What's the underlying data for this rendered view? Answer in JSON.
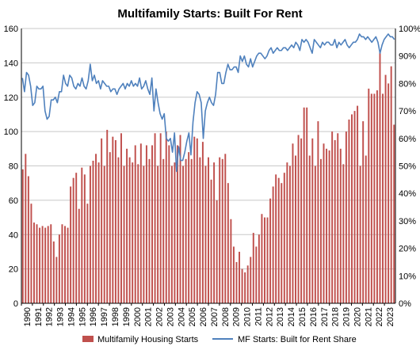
{
  "chart_data": {
    "type": "bar",
    "title": "Multifamily Starts: Built For Rent",
    "xlabel": "",
    "ylabel": "",
    "ylim": [
      0,
      160
    ],
    "y2lim": [
      0,
      100
    ],
    "yticks": [
      "0",
      "20",
      "40",
      "60",
      "80",
      "100",
      "120",
      "140",
      "160"
    ],
    "y2ticks": [
      "0%",
      "10%",
      "20%",
      "30%",
      "40%",
      "50%",
      "60%",
      "70%",
      "80%",
      "90%",
      "100%"
    ],
    "x_ticks": [
      "1990",
      "1991",
      "1992",
      "1993",
      "1994",
      "1995",
      "1996",
      "1997",
      "1998",
      "1999",
      "2000",
      "2001",
      "2002",
      "2003",
      "2004",
      "2005",
      "2006",
      "2007",
      "2008",
      "2009",
      "2010",
      "2011",
      "2012",
      "2013",
      "2014",
      "2015",
      "2016",
      "2017",
      "2018",
      "2019",
      "2020",
      "2021",
      "2022",
      "2023"
    ],
    "grid": true,
    "legend_position": "bottom",
    "colors": {
      "bars": "#c0504d",
      "line": "#4f81bd",
      "grid": "#c8c8c8"
    },
    "series": [
      {
        "name": "Multifamily Housing Starts",
        "type": "bar",
        "axis": "left",
        "values": [
          78,
          87,
          74,
          58,
          47,
          46,
          44,
          45,
          44,
          45,
          46,
          36,
          27,
          40,
          46,
          45,
          44,
          68,
          73,
          76,
          55,
          79,
          75,
          58,
          80,
          83,
          87,
          82,
          96,
          80,
          101,
          88,
          97,
          95,
          85,
          99,
          80,
          90,
          85,
          82,
          92,
          81,
          93,
          80,
          92,
          84,
          92,
          99,
          80,
          99,
          84,
          100,
          92,
          80,
          82,
          92,
          98,
          80,
          84,
          88,
          84,
          97,
          96,
          85,
          94,
          80,
          85,
          72,
          82,
          60,
          85,
          84,
          87,
          70,
          49,
          33,
          24,
          30,
          20,
          18,
          22,
          27,
          41,
          33,
          40,
          52,
          50,
          50,
          61,
          68,
          75,
          73,
          70,
          76,
          82,
          80,
          93,
          86,
          98,
          96,
          114,
          114,
          86,
          96,
          80,
          106,
          84,
          93,
          90,
          89,
          100,
          95,
          99,
          90,
          81,
          100,
          107,
          110,
          112,
          115,
          80,
          106,
          86,
          125,
          122,
          122,
          124,
          147,
          122,
          133,
          128,
          138,
          104
        ]
      },
      {
        "name": "MF Starts: Built for Rent Share",
        "type": "line",
        "axis": "right",
        "values": [
          82,
          77,
          84,
          83,
          79,
          72,
          73,
          79,
          78,
          78,
          79,
          70,
          67,
          68,
          74,
          74,
          75,
          73,
          77,
          77,
          83,
          80,
          79,
          83,
          82,
          79,
          78,
          80,
          79,
          82,
          79,
          78,
          81,
          87,
          81,
          83,
          80,
          81,
          78,
          81,
          80,
          79,
          79,
          77,
          78,
          78,
          76,
          78,
          79,
          80,
          78,
          80,
          79,
          81,
          79,
          80,
          79,
          82,
          78,
          79,
          81,
          78,
          76,
          82,
          70,
          78,
          73,
          69,
          67,
          69,
          60,
          59,
          60,
          55,
          62,
          48,
          57,
          52,
          52,
          55,
          59,
          62,
          54,
          66,
          73,
          77,
          76,
          73,
          60,
          70,
          73,
          75,
          73,
          72,
          76,
          84,
          84,
          80,
          80,
          84,
          87,
          85,
          85,
          86,
          86,
          84,
          90,
          88,
          90,
          87,
          86,
          89,
          86,
          88,
          90,
          91,
          91,
          90,
          89,
          90,
          92,
          93,
          91,
          92,
          93,
          92,
          92,
          93,
          93,
          92,
          93,
          94,
          93,
          95,
          94,
          92,
          96,
          95,
          96,
          95,
          93,
          91,
          96,
          95,
          94,
          93,
          95,
          94,
          95,
          95,
          94,
          94,
          96,
          93,
          95,
          94,
          95,
          96,
          94,
          93,
          94,
          95,
          95,
          96,
          98,
          97,
          97,
          96,
          97,
          96,
          95,
          96,
          97,
          95,
          91,
          94,
          96,
          97,
          98,
          97,
          97,
          96
        ]
      }
    ]
  }
}
